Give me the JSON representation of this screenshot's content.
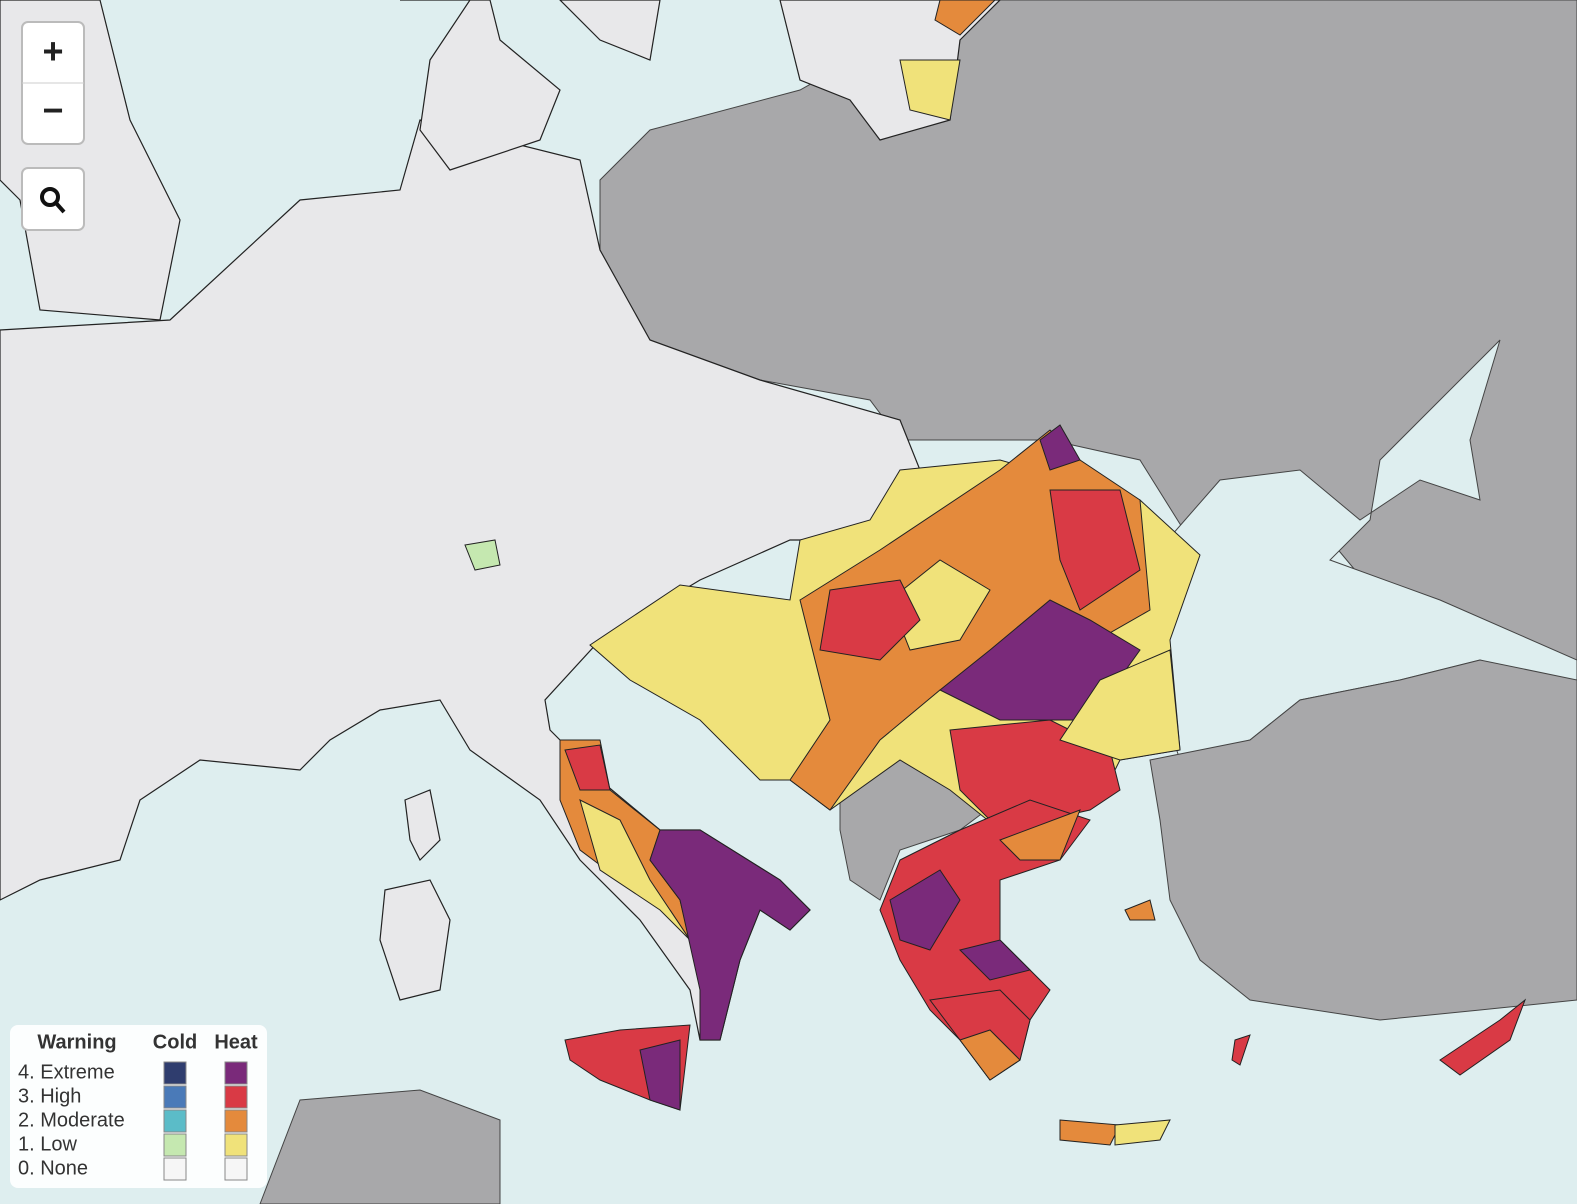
{
  "controls": {
    "zoom_in": "+",
    "zoom_out": "−"
  },
  "legend": {
    "title": "Warning",
    "columns": [
      "Cold",
      "Heat"
    ],
    "levels": [
      {
        "label": "4. Extreme",
        "cold": "#2f3d6e",
        "heat": "#7a2a7a"
      },
      {
        "label": "3. High",
        "cold": "#4a7ab8",
        "heat": "#d93a45"
      },
      {
        "label": "2. Moderate",
        "cold": "#5bbcc8",
        "heat": "#e48a3c"
      },
      {
        "label": "1. Low",
        "cold": "#c5e8b0",
        "heat": "#f0e27a"
      },
      {
        "label": "0. None",
        "cold": "#f6f6f6",
        "heat": "#f6f6f6"
      }
    ]
  }
}
